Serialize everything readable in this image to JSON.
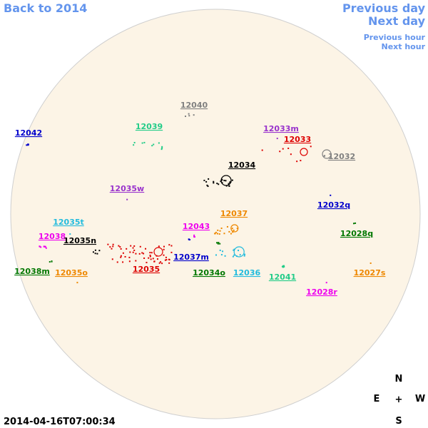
{
  "nav": {
    "back": "Back to 2014",
    "prev_day": "Previous day",
    "next_day": "Next day",
    "prev_hour": "Previous hour",
    "next_hour": "Next hour"
  },
  "regions": [
    {
      "label": "12040",
      "color": "#808080"
    },
    {
      "label": "12042",
      "color": "#0000cc"
    },
    {
      "label": "12039",
      "color": "#22cc88"
    },
    {
      "label": "12033m",
      "color": "#9933cc"
    },
    {
      "label": "12033",
      "color": "#dd0000"
    },
    {
      "label": "12032",
      "color": "#808080"
    },
    {
      "label": "12034",
      "color": "#000000"
    },
    {
      "label": "12035w",
      "color": "#9933cc"
    },
    {
      "label": "12032q",
      "color": "#0000cc"
    },
    {
      "label": "12037",
      "color": "#ee8800"
    },
    {
      "label": "12035t",
      "color": "#22bbdd"
    },
    {
      "label": "12043",
      "color": "#ee00ee"
    },
    {
      "label": "12028q",
      "color": "#007700"
    },
    {
      "label": "12038",
      "color": "#ee00ee"
    },
    {
      "label": "12035n",
      "color": "#000000"
    },
    {
      "label": "12037m",
      "color": "#0000cc"
    },
    {
      "label": "12038m",
      "color": "#007700"
    },
    {
      "label": "12035o",
      "color": "#ee8800"
    },
    {
      "label": "12035",
      "color": "#dd0000"
    },
    {
      "label": "12034o",
      "color": "#007700"
    },
    {
      "label": "12036",
      "color": "#22bbdd"
    },
    {
      "label": "12041",
      "color": "#22cc88"
    },
    {
      "label": "12027s",
      "color": "#ee8800"
    },
    {
      "label": "12028r",
      "color": "#ee00ee"
    }
  ],
  "compass": {
    "north": "N",
    "east": "E",
    "center": "+",
    "west": "W",
    "south": "S"
  },
  "timestamp": "2014-04-16T07:00:34"
}
